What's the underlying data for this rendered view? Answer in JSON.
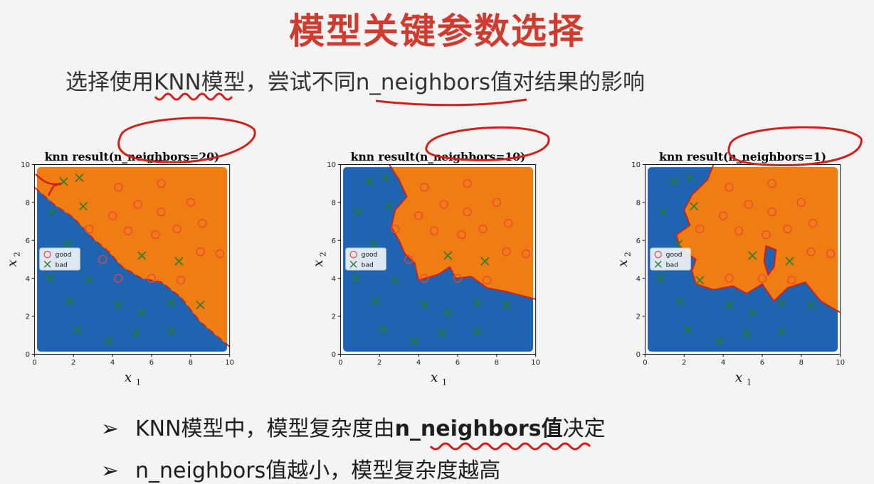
{
  "slide": {
    "title": "模型关键参数选择",
    "subtitle": "选择使用KNN模型，尝试不同n_neighbors值对结果的影响",
    "bullets": [
      {
        "marker": "➢",
        "pre": "KNN模型中，模型复杂度由",
        "bold": "n_neighbors值",
        "post": "决定"
      },
      {
        "marker": "➢",
        "pre": "n_neighbors值越小，模型复杂度越高",
        "bold": "",
        "post": ""
      }
    ]
  },
  "colors": {
    "blue": "#1f64b0",
    "orange": "#f07d12",
    "good": "#e8463a",
    "bad": "#2a7d2a",
    "ink": "#d0201a"
  },
  "chart_data": [
    {
      "type": "scatter",
      "title": "knn result(n_neighbors=20)",
      "xlabel": "x",
      "xlabel_sub": "1",
      "ylabel": "x",
      "ylabel_sub": "2",
      "xlim": [
        0,
        10
      ],
      "ylim": [
        0,
        10
      ],
      "xticks": [
        0,
        2,
        4,
        6,
        8,
        10
      ],
      "yticks": [
        0,
        2,
        4,
        6,
        8,
        10
      ],
      "legend": [
        "good",
        "bad"
      ],
      "legend_position": "center-left",
      "series": [
        {
          "name": "good",
          "marker": "o",
          "points": [
            [
              4.3,
              8.8
            ],
            [
              6.5,
              9.0
            ],
            [
              5.3,
              7.9
            ],
            [
              8.0,
              8.0
            ],
            [
              4.0,
              7.3
            ],
            [
              6.5,
              7.5
            ],
            [
              2.8,
              6.6
            ],
            [
              4.8,
              6.5
            ],
            [
              6.2,
              6.3
            ],
            [
              7.3,
              6.6
            ],
            [
              8.6,
              6.9
            ],
            [
              3.5,
              5.0
            ],
            [
              8.5,
              5.4
            ],
            [
              9.5,
              5.3
            ],
            [
              6.0,
              4.0
            ],
            [
              4.3,
              4.0
            ],
            [
              7.5,
              3.9
            ]
          ]
        },
        {
          "name": "bad",
          "marker": "x",
          "points": [
            [
              1.5,
              9.1
            ],
            [
              2.3,
              9.3
            ],
            [
              0.9,
              7.5
            ],
            [
              2.5,
              7.8
            ],
            [
              1.7,
              5.8
            ],
            [
              0.8,
              4.0
            ],
            [
              5.5,
              5.2
            ],
            [
              7.4,
              4.9
            ],
            [
              2.8,
              3.9
            ],
            [
              1.8,
              2.8
            ],
            [
              4.3,
              2.6
            ],
            [
              5.5,
              2.2
            ],
            [
              7.0,
              2.7
            ],
            [
              8.5,
              2.6
            ],
            [
              2.2,
              1.3
            ],
            [
              3.8,
              0.7
            ],
            [
              5.2,
              1.1
            ],
            [
              7.0,
              1.2
            ]
          ]
        }
      ],
      "boundary": [
        [
          0,
          8.8
        ],
        [
          1,
          7.9
        ],
        [
          2,
          7.2
        ],
        [
          3,
          6.1
        ],
        [
          3.8,
          5.4
        ],
        [
          4.5,
          4.6
        ],
        [
          5.5,
          4.0
        ],
        [
          6.5,
          3.8
        ],
        [
          7.5,
          3.0
        ],
        [
          8.5,
          1.7
        ],
        [
          9.3,
          1.0
        ],
        [
          10,
          0.4
        ]
      ]
    },
    {
      "type": "scatter",
      "title": "knn result(n_neighbors=10)",
      "xlabel": "x",
      "xlabel_sub": "1",
      "ylabel": "x",
      "ylabel_sub": "2",
      "xlim": [
        0,
        10
      ],
      "ylim": [
        0,
        10
      ],
      "xticks": [
        0,
        2,
        4,
        6,
        8,
        10
      ],
      "yticks": [
        0,
        2,
        4,
        6,
        8,
        10
      ],
      "legend": [
        "good",
        "bad"
      ],
      "legend_position": "center-left",
      "series": [
        {
          "name": "good",
          "marker": "o",
          "points": [
            [
              4.3,
              8.8
            ],
            [
              6.5,
              9.0
            ],
            [
              5.3,
              7.9
            ],
            [
              8.0,
              8.0
            ],
            [
              4.0,
              7.3
            ],
            [
              6.5,
              7.5
            ],
            [
              2.8,
              6.6
            ],
            [
              4.8,
              6.5
            ],
            [
              6.2,
              6.3
            ],
            [
              7.3,
              6.6
            ],
            [
              8.6,
              6.9
            ],
            [
              3.5,
              5.0
            ],
            [
              8.5,
              5.4
            ],
            [
              9.5,
              5.3
            ],
            [
              6.0,
              4.0
            ],
            [
              4.3,
              4.0
            ],
            [
              7.5,
              3.9
            ]
          ]
        },
        {
          "name": "bad",
          "marker": "x",
          "points": [
            [
              1.5,
              9.1
            ],
            [
              2.3,
              9.3
            ],
            [
              0.9,
              7.5
            ],
            [
              2.5,
              7.8
            ],
            [
              1.7,
              5.8
            ],
            [
              0.8,
              4.0
            ],
            [
              5.5,
              5.2
            ],
            [
              7.4,
              4.9
            ],
            [
              2.8,
              3.9
            ],
            [
              1.8,
              2.8
            ],
            [
              4.3,
              2.6
            ],
            [
              5.5,
              2.2
            ],
            [
              7.0,
              2.7
            ],
            [
              8.5,
              2.6
            ],
            [
              2.2,
              1.3
            ],
            [
              3.8,
              0.7
            ],
            [
              5.2,
              1.1
            ],
            [
              7.0,
              1.2
            ]
          ]
        }
      ],
      "boundary": [
        [
          2.5,
          10
        ],
        [
          3.0,
          9.2
        ],
        [
          3.4,
          8.3
        ],
        [
          2.8,
          7.6
        ],
        [
          2.6,
          6.7
        ],
        [
          3.0,
          6.0
        ],
        [
          3.3,
          5.3
        ],
        [
          3.8,
          4.8
        ],
        [
          4.0,
          3.9
        ],
        [
          5.0,
          4.2
        ],
        [
          5.6,
          4.6
        ],
        [
          5.9,
          4.0
        ],
        [
          6.7,
          4.1
        ],
        [
          7.5,
          3.5
        ],
        [
          8.5,
          3.3
        ],
        [
          10,
          2.9
        ]
      ]
    },
    {
      "type": "scatter",
      "title": "knn result(n_neighbors=1)",
      "xlabel": "x",
      "xlabel_sub": "1",
      "ylabel": "x",
      "ylabel_sub": "2",
      "xlim": [
        0,
        10
      ],
      "ylim": [
        0,
        10
      ],
      "xticks": [
        0,
        2,
        4,
        6,
        8,
        10
      ],
      "yticks": [
        0,
        2,
        4,
        6,
        8,
        10
      ],
      "legend": [
        "good",
        "bad"
      ],
      "legend_position": "center-left",
      "series": [
        {
          "name": "good",
          "marker": "o",
          "points": [
            [
              4.3,
              8.8
            ],
            [
              6.5,
              9.0
            ],
            [
              5.3,
              7.9
            ],
            [
              8.0,
              8.0
            ],
            [
              4.0,
              7.3
            ],
            [
              6.5,
              7.5
            ],
            [
              2.8,
              6.6
            ],
            [
              4.8,
              6.5
            ],
            [
              6.2,
              6.3
            ],
            [
              7.3,
              6.6
            ],
            [
              8.6,
              6.9
            ],
            [
              1.9,
              5.0
            ],
            [
              8.5,
              5.4
            ],
            [
              9.5,
              5.3
            ],
            [
              6.0,
              4.0
            ],
            [
              4.3,
              4.0
            ],
            [
              7.5,
              3.9
            ]
          ]
        },
        {
          "name": "bad",
          "marker": "x",
          "points": [
            [
              1.5,
              9.1
            ],
            [
              2.3,
              9.3
            ],
            [
              0.9,
              7.5
            ],
            [
              2.5,
              7.8
            ],
            [
              1.7,
              5.8
            ],
            [
              0.8,
              4.0
            ],
            [
              5.5,
              5.2
            ],
            [
              7.4,
              4.9
            ],
            [
              2.8,
              3.9
            ],
            [
              1.8,
              2.8
            ],
            [
              4.3,
              2.6
            ],
            [
              5.5,
              2.2
            ],
            [
              7.0,
              2.7
            ],
            [
              8.5,
              2.6
            ],
            [
              2.2,
              1.3
            ],
            [
              3.8,
              0.7
            ],
            [
              5.2,
              1.1
            ],
            [
              7.0,
              1.2
            ]
          ]
        }
      ],
      "boundary": [
        [
          3.5,
          10
        ],
        [
          3.2,
          9.2
        ],
        [
          2.4,
          8.4
        ],
        [
          2.0,
          7.6
        ],
        [
          2.3,
          6.8
        ],
        [
          1.6,
          6.3
        ],
        [
          1.8,
          5.6
        ],
        [
          2.6,
          5.0
        ],
        [
          2.4,
          4.4
        ],
        [
          2.6,
          3.7
        ],
        [
          3.5,
          3.4
        ],
        [
          4.5,
          3.6
        ],
        [
          5.2,
          3.2
        ],
        [
          6.0,
          3.7
        ],
        [
          6.6,
          2.8
        ],
        [
          7.3,
          3.5
        ],
        [
          8.2,
          3.8
        ],
        [
          9.0,
          2.8
        ],
        [
          10,
          2.2
        ]
      ],
      "island": [
        [
          6.2,
          5.7
        ],
        [
          6.7,
          5.5
        ],
        [
          6.6,
          4.6
        ],
        [
          6.3,
          4.2
        ],
        [
          6.1,
          4.9
        ]
      ]
    }
  ]
}
